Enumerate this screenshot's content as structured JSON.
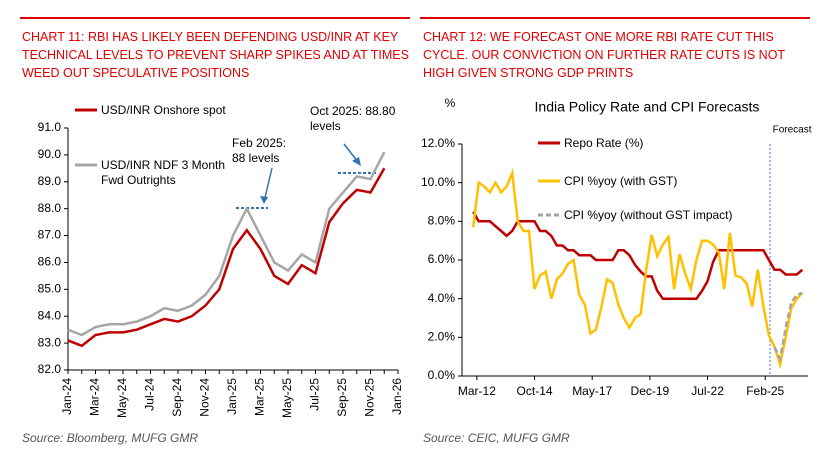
{
  "chart_data": [
    {
      "type": "line",
      "caption": "CHART 11: RBI HAS LIKELY BEEN DEFENDING USD/INR AT KEY TECHNICAL LEVELS TO PREVENT SHARP SPIKES AND AT TIMES WEED OUT SPECULATIVE POSITIONS",
      "source": "Source: Bloomberg, MUFG GMR",
      "categories": [
        "Jan-24",
        null,
        "Mar-24",
        null,
        "May-24",
        null,
        "Jul-24",
        null,
        "Sep-24",
        null,
        "Nov-24",
        null,
        "Jan-25",
        null,
        "Mar-25",
        null,
        "May-25",
        null,
        "Jul-25",
        null,
        "Sep-25",
        null,
        "Nov-25",
        null,
        "Jan-26"
      ],
      "series": [
        {
          "name": "USD/INR Onshore spot",
          "color": "#c00000",
          "values": [
            83.1,
            82.9,
            83.3,
            83.4,
            83.4,
            83.5,
            83.7,
            83.9,
            83.8,
            84.0,
            84.4,
            85.0,
            86.5,
            87.2,
            86.5,
            85.5,
            85.2,
            85.9,
            85.6,
            87.5,
            88.2,
            88.7,
            88.6,
            89.5,
            null
          ]
        },
        {
          "name": "USD/INR NDF 3 Month Fwd Outrights",
          "color": "#a6a6a6",
          "values": [
            83.5,
            83.3,
            83.6,
            83.7,
            83.7,
            83.8,
            84.0,
            84.3,
            84.2,
            84.4,
            84.8,
            85.5,
            87.0,
            88.0,
            87.0,
            86.0,
            85.7,
            86.3,
            86.0,
            88.0,
            88.6,
            89.2,
            89.1,
            90.1,
            null
          ]
        }
      ],
      "annotations": [
        "Feb 2025: 88 levels",
        "Oct 2025: 88.80 levels"
      ],
      "ylim": [
        82,
        91
      ],
      "yticks": [
        {
          "value": 82,
          "label": "82.0"
        },
        {
          "value": 83,
          "label": "83.0"
        },
        {
          "value": 84,
          "label": "84.0"
        },
        {
          "value": 85,
          "label": "85.0"
        },
        {
          "value": 86,
          "label": "86.0"
        },
        {
          "value": 87,
          "label": "87.0"
        },
        {
          "value": 88,
          "label": "88.0"
        },
        {
          "value": 89,
          "label": "89.0"
        },
        {
          "value": 90,
          "label": "90.0"
        },
        {
          "value": 91,
          "label": "91.0"
        }
      ],
      "grid": false
    },
    {
      "type": "line",
      "caption": "CHART 12: WE FORECAST ONE MORE RBI RATE CUT THIS CYCLE. OUR CONVICTION ON FURTHER RATE CUTS IS NOT HIGH GIVEN STRONG GDP PRINTS",
      "source": "Source: CEIC, MUFG GMR",
      "title": "India Policy Rate and CPI Forecasts",
      "y_label": "%",
      "forecast": {
        "x": 2025.3,
        "label": "Forecast"
      },
      "x": [
        2012.0,
        2012.25,
        2012.5,
        2012.75,
        2013.0,
        2013.25,
        2013.5,
        2013.75,
        2014.0,
        2014.25,
        2014.5,
        2014.75,
        2015.0,
        2015.25,
        2015.5,
        2015.75,
        2016.0,
        2016.25,
        2016.5,
        2016.75,
        2017.0,
        2017.25,
        2017.5,
        2017.75,
        2018.0,
        2018.25,
        2018.5,
        2018.75,
        2019.0,
        2019.25,
        2019.5,
        2019.75,
        2020.0,
        2020.25,
        2020.5,
        2020.75,
        2021.0,
        2021.25,
        2021.5,
        2021.75,
        2022.0,
        2022.25,
        2022.5,
        2022.75,
        2023.0,
        2023.25,
        2023.5,
        2023.75,
        2024.0,
        2024.25,
        2024.5,
        2024.75,
        2025.0,
        2025.25,
        2025.5,
        2025.75,
        2026.0,
        2026.25,
        2026.5,
        2026.75
      ],
      "series": [
        {
          "name": "Repo Rate (%)",
          "color": "#c00000",
          "values": [
            8.5,
            8.0,
            8.0,
            8.0,
            7.75,
            7.5,
            7.25,
            7.5,
            8.0,
            8.0,
            8.0,
            8.0,
            7.5,
            7.5,
            7.25,
            6.75,
            6.75,
            6.5,
            6.5,
            6.25,
            6.25,
            6.25,
            6.0,
            6.0,
            6.0,
            6.0,
            6.5,
            6.5,
            6.25,
            5.75,
            5.4,
            5.15,
            5.15,
            4.4,
            4.0,
            4.0,
            4.0,
            4.0,
            4.0,
            4.0,
            4.0,
            4.4,
            4.9,
            5.9,
            6.5,
            6.5,
            6.5,
            6.5,
            6.5,
            6.5,
            6.5,
            6.5,
            6.5,
            6.0,
            5.5,
            5.5,
            5.25,
            5.25,
            5.25,
            5.5
          ]
        },
        {
          "name": "CPI %yoy (with GST)",
          "color": "#ffc000",
          "values": [
            7.7,
            10.0,
            9.8,
            9.5,
            10.0,
            9.5,
            9.8,
            10.5,
            8.0,
            7.5,
            7.5,
            4.5,
            5.2,
            5.4,
            4.0,
            5.0,
            5.3,
            5.8,
            6.0,
            4.2,
            3.7,
            2.2,
            2.4,
            3.6,
            5.0,
            4.8,
            3.7,
            3.0,
            2.5,
            3.0,
            3.2,
            5.5,
            7.3,
            6.2,
            6.8,
            7.2,
            4.5,
            6.3,
            5.3,
            4.5,
            6.0,
            7.0,
            7.0,
            6.8,
            6.4,
            4.5,
            7.4,
            5.2,
            5.1,
            4.8,
            3.6,
            5.5,
            3.6,
            2.1,
            1.5,
            0.6,
            2.0,
            3.5,
            4.0,
            4.3
          ]
        },
        {
          "name": "CPI %yoy (without GST impact)",
          "color": "#a6a6a6",
          "dashed": true,
          "values": [
            null,
            null,
            null,
            null,
            null,
            null,
            null,
            null,
            null,
            null,
            null,
            null,
            null,
            null,
            null,
            null,
            null,
            null,
            null,
            null,
            null,
            null,
            null,
            null,
            null,
            null,
            null,
            null,
            null,
            null,
            null,
            null,
            null,
            null,
            null,
            null,
            null,
            null,
            null,
            null,
            null,
            null,
            null,
            null,
            null,
            null,
            null,
            null,
            null,
            null,
            null,
            null,
            null,
            null,
            1.5,
            0.9,
            2.5,
            3.8,
            4.2,
            4.3
          ]
        }
      ],
      "xlim": [
        2011.5,
        2027.0
      ],
      "xticks": [
        {
          "value": 2012.167,
          "label": "Mar-12"
        },
        {
          "value": 2014.75,
          "label": "Oct-14"
        },
        {
          "value": 2017.333,
          "label": "May-17"
        },
        {
          "value": 2019.917,
          "label": "Dec-19"
        },
        {
          "value": 2022.5,
          "label": "Jul-22"
        },
        {
          "value": 2025.083,
          "label": "Feb-25"
        }
      ],
      "ylim": [
        0,
        12
      ],
      "yticks": [
        {
          "value": 0,
          "label": "0.0%"
        },
        {
          "value": 2,
          "label": "2.0%"
        },
        {
          "value": 4,
          "label": "4.0%"
        },
        {
          "value": 6,
          "label": "6.0%"
        },
        {
          "value": 8,
          "label": "8.0%"
        },
        {
          "value": 10,
          "label": "10.0%"
        },
        {
          "value": 12,
          "label": "12.0%"
        }
      ],
      "grid": false
    }
  ]
}
